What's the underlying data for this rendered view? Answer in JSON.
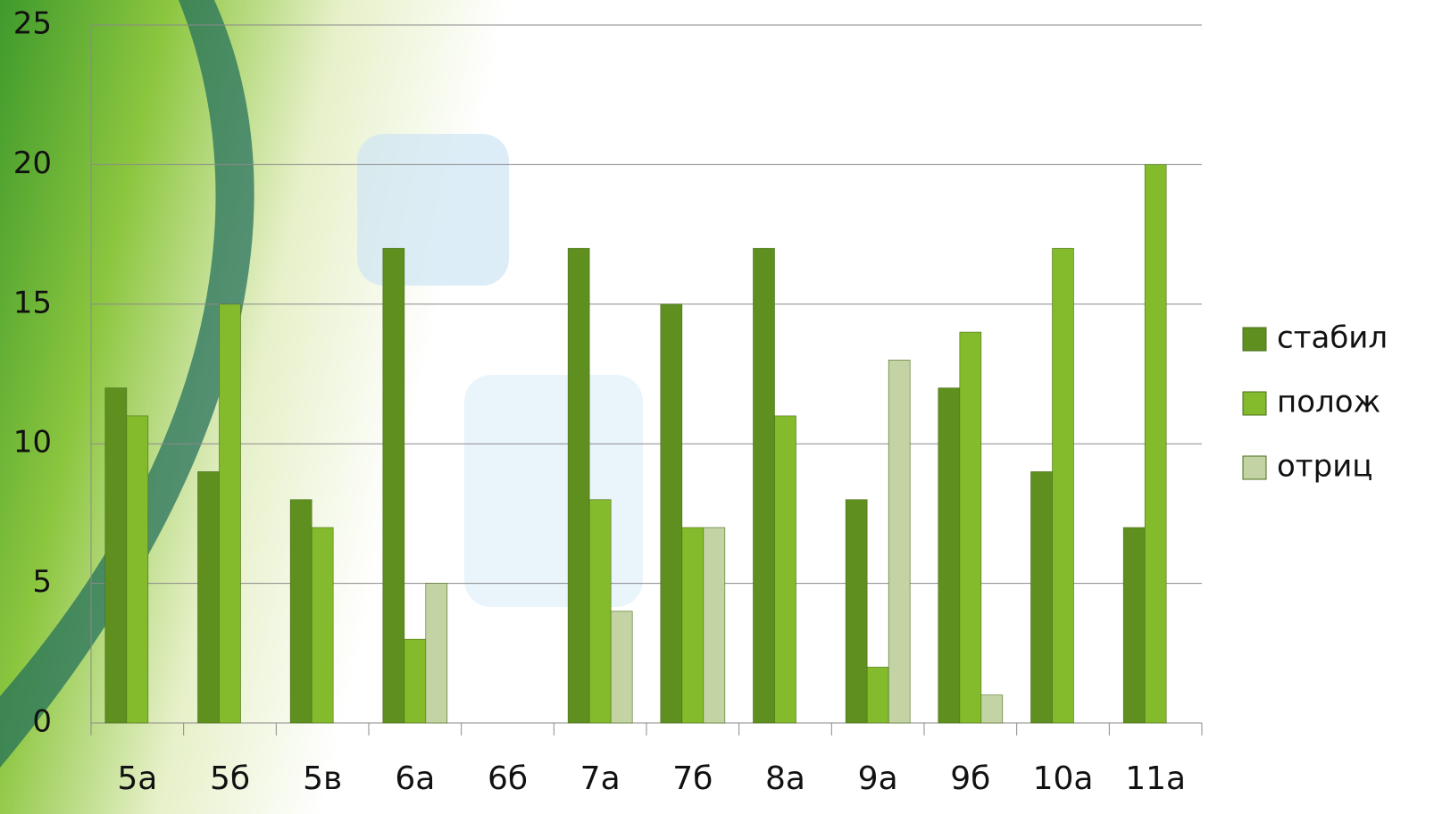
{
  "chart_data": {
    "type": "bar",
    "categories": [
      "5а",
      "5б",
      "5в",
      "6а",
      "6б",
      "7а",
      "7б",
      "8а",
      "9а",
      "9б",
      "10а",
      "11а"
    ],
    "series": [
      {
        "name": "стабил",
        "color": "#5e8f1f",
        "values": [
          12,
          9,
          8,
          17,
          0,
          17,
          15,
          17,
          8,
          12,
          9,
          7
        ]
      },
      {
        "name": "полож",
        "color": "#84bb2c",
        "values": [
          11,
          15,
          7,
          3,
          0,
          8,
          7,
          11,
          2,
          14,
          17,
          20
        ]
      },
      {
        "name": "отриц",
        "color": "#c3d3a4",
        "values": [
          0,
          0,
          0,
          5,
          0,
          4,
          7,
          0,
          13,
          1,
          0,
          0
        ]
      }
    ],
    "ylim": [
      0,
      25
    ],
    "yticks": [
      0,
      5,
      10,
      15,
      20,
      25
    ],
    "grid": true
  }
}
